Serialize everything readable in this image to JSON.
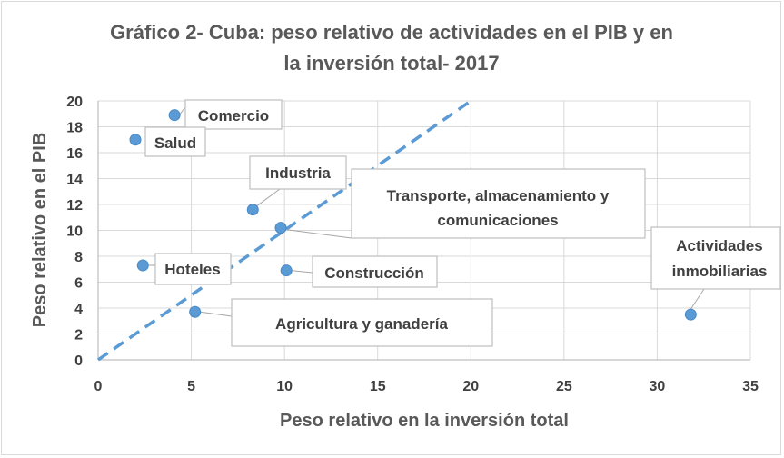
{
  "chart_data": {
    "type": "scatter",
    "title_line1": "Gráfico 2- Cuba: peso relativo de actividades en el PIB y en",
    "title_line2": "la inversión total- 2017",
    "xlabel": "Peso relativo en la inversión total",
    "ylabel": "Peso relativo en el PIB",
    "xlim": [
      0,
      35
    ],
    "ylim": [
      0,
      20
    ],
    "xticks": [
      0,
      5,
      10,
      15,
      20,
      25,
      30,
      35
    ],
    "yticks": [
      0,
      2,
      4,
      6,
      8,
      10,
      12,
      14,
      16,
      18,
      20
    ],
    "grid": true,
    "marker_color": "#5b9bd5",
    "reference_line": {
      "style": "dashed",
      "color": "#5b9bd5",
      "from": [
        0,
        0
      ],
      "to": [
        20,
        20
      ]
    },
    "points": [
      {
        "label": "Comercio",
        "x": 4.1,
        "y": 18.9
      },
      {
        "label": "Salud",
        "x": 2.0,
        "y": 17.0
      },
      {
        "label": "Industria",
        "x": 8.3,
        "y": 11.6
      },
      {
        "label": "Transporte, almacenamiento y comunicaciones",
        "x": 9.8,
        "y": 10.2
      },
      {
        "label": "Hoteles",
        "x": 2.4,
        "y": 7.3
      },
      {
        "label": "Construcción",
        "x": 10.1,
        "y": 6.9
      },
      {
        "label": "Agricultura y ganadería",
        "x": 5.2,
        "y": 3.7
      },
      {
        "label": "Actividades inmobiliarias",
        "x": 31.8,
        "y": 3.5
      }
    ]
  }
}
